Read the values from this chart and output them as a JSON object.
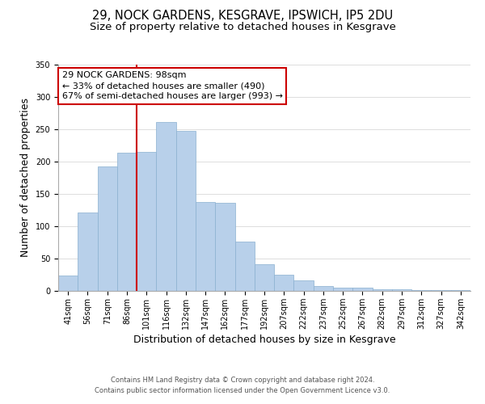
{
  "title": "29, NOCK GARDENS, KESGRAVE, IPSWICH, IP5 2DU",
  "subtitle": "Size of property relative to detached houses in Kesgrave",
  "xlabel": "Distribution of detached houses by size in Kesgrave",
  "ylabel": "Number of detached properties",
  "categories": [
    "41sqm",
    "56sqm",
    "71sqm",
    "86sqm",
    "101sqm",
    "116sqm",
    "132sqm",
    "147sqm",
    "162sqm",
    "177sqm",
    "192sqm",
    "207sqm",
    "222sqm",
    "237sqm",
    "252sqm",
    "267sqm",
    "282sqm",
    "297sqm",
    "312sqm",
    "327sqm",
    "342sqm"
  ],
  "values": [
    24,
    121,
    192,
    214,
    215,
    261,
    247,
    137,
    136,
    76,
    41,
    25,
    16,
    8,
    5,
    5,
    2,
    2,
    1,
    1,
    1
  ],
  "bar_color": "#b8d0ea",
  "bar_edge_color": "#8ab0d0",
  "vline_color": "#cc0000",
  "annotation_title": "29 NOCK GARDENS: 98sqm",
  "annotation_line1": "← 33% of detached houses are smaller (490)",
  "annotation_line2": "67% of semi-detached houses are larger (993) →",
  "annotation_box_color": "#ffffff",
  "annotation_box_edge": "#cc0000",
  "ylim": [
    0,
    350
  ],
  "yticks": [
    0,
    50,
    100,
    150,
    200,
    250,
    300,
    350
  ],
  "footer1": "Contains HM Land Registry data © Crown copyright and database right 2024.",
  "footer2": "Contains public sector information licensed under the Open Government Licence v3.0.",
  "title_fontsize": 10.5,
  "subtitle_fontsize": 9.5,
  "axis_label_fontsize": 9,
  "tick_fontsize": 7,
  "footer_fontsize": 6,
  "annotation_fontsize": 8
}
